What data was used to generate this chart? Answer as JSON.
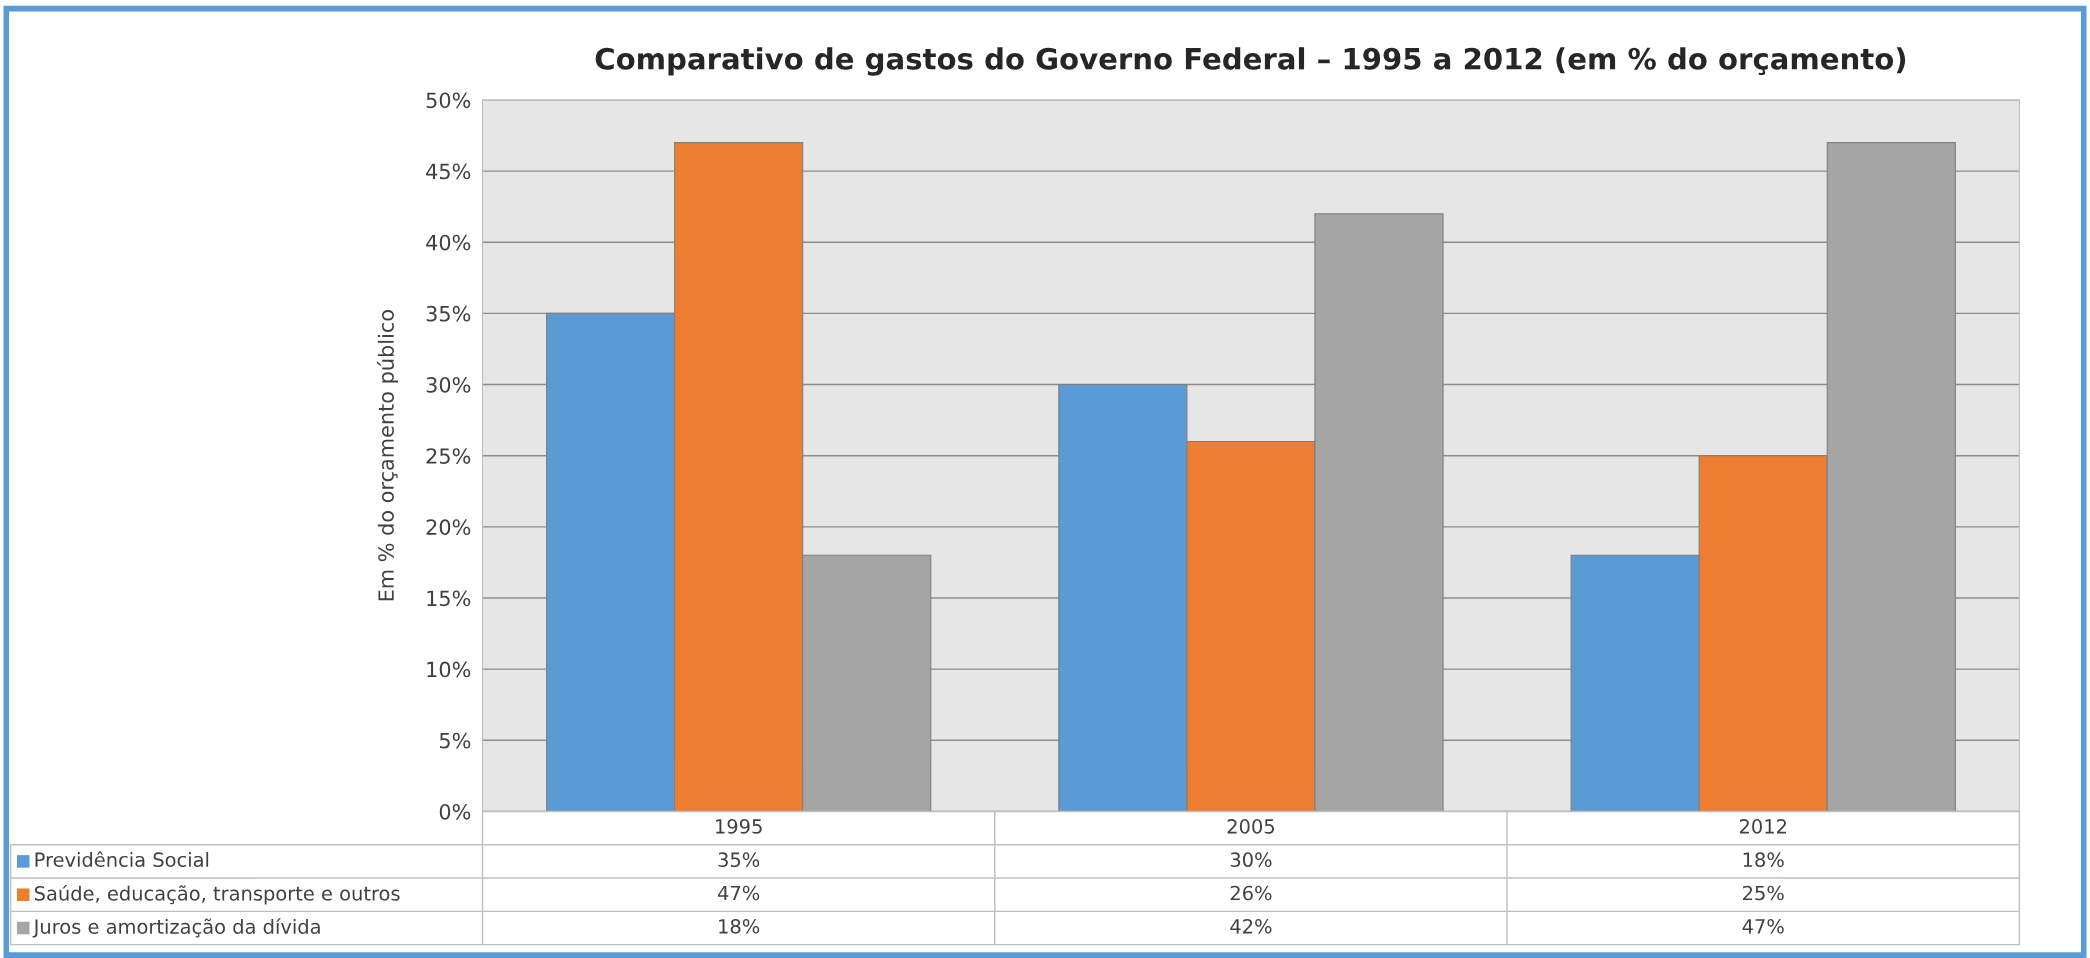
{
  "chart_data": {
    "type": "bar",
    "title": "Comparativo de gastos do Governo Federal – 1995 a 2012 (em % do orçamento)",
    "ylabel": "Em % do orçamento público",
    "categories": [
      "1995",
      "2005",
      "2012"
    ],
    "series": [
      {
        "name": "Previdência Social",
        "color": "#5b9bd5",
        "values": [
          35,
          30,
          18
        ],
        "value_labels": [
          "35%",
          "30%",
          "18%"
        ]
      },
      {
        "name": "Saúde, educação, transporte e outros",
        "color": "#ed7d31",
        "values": [
          47,
          26,
          25
        ],
        "value_labels": [
          "47%",
          "26%",
          "25%"
        ]
      },
      {
        "name": "Juros e amortização da dívida",
        "color": "#a5a5a5",
        "values": [
          18,
          42,
          47
        ],
        "value_labels": [
          "18%",
          "42%",
          "47%"
        ]
      }
    ],
    "ylim": [
      0,
      50
    ],
    "yticks": [
      {
        "value": 0,
        "label": "0%"
      },
      {
        "value": 5,
        "label": "5%"
      },
      {
        "value": 10,
        "label": "10%"
      },
      {
        "value": 15,
        "label": "15%"
      },
      {
        "value": 20,
        "label": "20%"
      },
      {
        "value": 25,
        "label": "25%"
      },
      {
        "value": 30,
        "label": "30%"
      },
      {
        "value": 35,
        "label": "35%"
      },
      {
        "value": 40,
        "label": "40%"
      },
      {
        "value": 45,
        "label": "45%"
      },
      {
        "value": 50,
        "label": "50%"
      }
    ],
    "grid": "y",
    "legend": "bottom"
  }
}
